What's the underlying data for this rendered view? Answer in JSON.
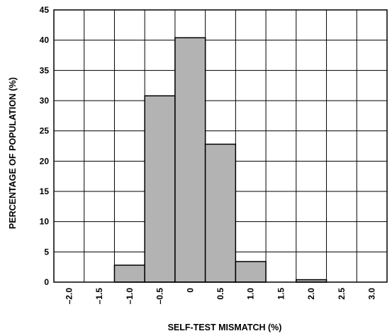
{
  "chart_data": {
    "type": "bar",
    "categories": [
      "-2.0",
      "-1.5",
      "-1.0",
      "-0.5",
      "0",
      "0.5",
      "1.0",
      "1.5",
      "2.0",
      "2.5",
      "3.0"
    ],
    "values": [
      0,
      0,
      2.8,
      30.8,
      40.4,
      22.8,
      3.4,
      0,
      0.4,
      0,
      0
    ],
    "bins": [
      {
        "from": -1.5,
        "to": -1.0,
        "value": 2.8
      },
      {
        "from": -1.0,
        "to": -0.5,
        "value": 30.8
      },
      {
        "from": -0.5,
        "to": 0.0,
        "value": 40.4
      },
      {
        "from": 0.0,
        "to": 0.5,
        "value": 22.8
      },
      {
        "from": 0.5,
        "to": 1.0,
        "value": 3.4
      },
      {
        "from": 1.5,
        "to": 2.0,
        "value": 0.4
      }
    ],
    "xlabel": "SELF-TEST MISMATCH (%)",
    "ylabel": "PERCENTAGE OF POPULATION (%)",
    "x_tick_labels": [
      "–2.0",
      "–1.5",
      "–1.0",
      "–0.5",
      "0",
      "0.5",
      "1.0",
      "1.5",
      "2.0",
      "2.5",
      "3.0"
    ],
    "y_tick_labels": [
      "0",
      "5",
      "10",
      "15",
      "20",
      "25",
      "30",
      "35",
      "40",
      "45"
    ],
    "ylim": [
      0,
      45
    ],
    "xlim": [
      -2.25,
      3.25
    ],
    "grid": true,
    "bar_color": "#b3b3b3"
  }
}
